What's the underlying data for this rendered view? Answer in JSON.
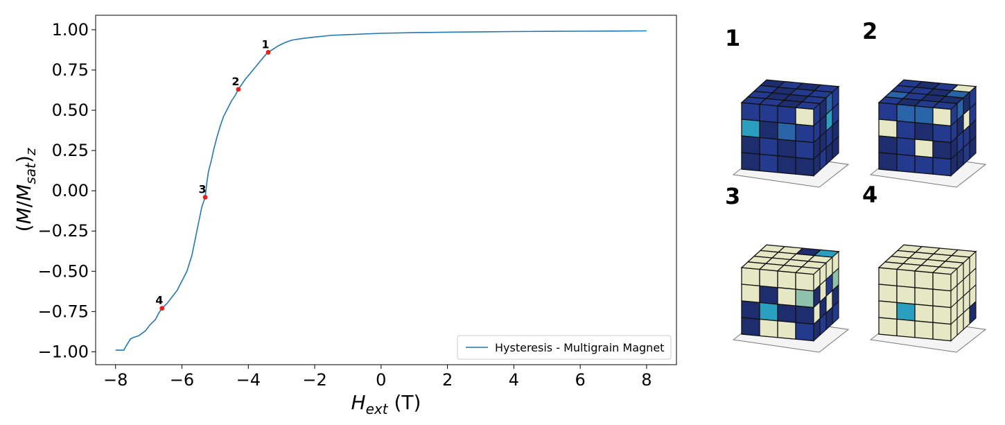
{
  "chart_data": {
    "type": "line",
    "xlabel_main": "H",
    "xlabel_sub": "ext",
    "xlabel_unit": "(T)",
    "ylabel_tokens": [
      "(",
      "M",
      "/",
      "M",
      "sat",
      ")",
      "z"
    ],
    "xlim": [
      -8.6,
      8.9
    ],
    "ylim": [
      -1.08,
      1.09
    ],
    "xticks": [
      -8,
      -6,
      -4,
      -2,
      0,
      2,
      4,
      6,
      8
    ],
    "xtick_labels": [
      "−8",
      "−6",
      "−4",
      "−2",
      "0",
      "2",
      "4",
      "6",
      "8"
    ],
    "yticks": [
      1.0,
      0.75,
      0.5,
      0.25,
      0.0,
      -0.25,
      -0.5,
      -0.75,
      -1.0
    ],
    "ytick_labels": [
      "1.00",
      "0.75",
      "0.50",
      "0.25",
      "0.00",
      "−0.25",
      "−0.50",
      "−0.75",
      "−1.00"
    ],
    "grid": false,
    "legend_position": "bottom-right",
    "series": [
      {
        "name": "Hysteresis - Multigrain Magnet",
        "color": "#1f77b4",
        "x": [
          -8.0,
          -7.75,
          -7.7,
          -7.55,
          -7.45,
          -7.3,
          -7.1,
          -6.95,
          -6.8,
          -6.7,
          -6.6,
          -6.45,
          -6.3,
          -6.15,
          -6.0,
          -5.85,
          -5.7,
          -5.6,
          -5.5,
          -5.4,
          -5.3,
          -5.25,
          -5.2,
          -5.1,
          -5.05,
          -4.95,
          -4.85,
          -4.75,
          -4.6,
          -4.5,
          -4.4,
          -4.3,
          -4.1,
          -3.9,
          -3.7,
          -3.5,
          -3.4,
          -3.25,
          -3.1,
          -2.9,
          -2.7,
          -2.4,
          -2.0,
          -1.5,
          -1.0,
          0.0,
          1.0,
          2.0,
          3.0,
          4.0,
          5.0,
          6.0,
          7.0,
          8.0
        ],
        "y": [
          -0.99,
          -0.99,
          -0.97,
          -0.92,
          -0.91,
          -0.9,
          -0.87,
          -0.83,
          -0.8,
          -0.76,
          -0.73,
          -0.7,
          -0.66,
          -0.62,
          -0.56,
          -0.5,
          -0.4,
          -0.3,
          -0.2,
          -0.1,
          -0.04,
          0.05,
          0.12,
          0.2,
          0.25,
          0.33,
          0.4,
          0.46,
          0.52,
          0.56,
          0.59,
          0.63,
          0.69,
          0.74,
          0.79,
          0.84,
          0.86,
          0.88,
          0.9,
          0.92,
          0.935,
          0.945,
          0.955,
          0.965,
          0.97,
          0.978,
          0.982,
          0.985,
          0.987,
          0.989,
          0.99,
          0.991,
          0.992,
          0.993
        ]
      }
    ],
    "marked_points": [
      {
        "label": "1",
        "x": -3.4,
        "y": 0.86,
        "color": "#e8201a"
      },
      {
        "label": "2",
        "x": -4.3,
        "y": 0.63,
        "color": "#e8201a"
      },
      {
        "label": "3",
        "x": -5.3,
        "y": -0.04,
        "color": "#e8201a"
      },
      {
        "label": "4",
        "x": -6.6,
        "y": -0.73,
        "color": "#e8201a"
      }
    ]
  },
  "snapshots": {
    "colors": {
      "dark": "#1e2d6e",
      "blue": "#243a8f",
      "mid": "#2a64a8",
      "teal": "#2a9fc0",
      "light": "#e6e7c4",
      "sage": "#8fc1ac"
    },
    "panels": [
      {
        "label": "1",
        "top": [
          "dark",
          "blue",
          "dark",
          "blue",
          "blue",
          "dark",
          "blue",
          "blue",
          "blue",
          "dark",
          "dark",
          "blue",
          "blue",
          "blue",
          "dark",
          "blue"
        ],
        "front": [
          "blue",
          "blue",
          "blue",
          "light",
          "teal",
          "dark",
          "mid",
          "blue",
          "dark",
          "blue",
          "dark",
          "blue",
          "dark",
          "blue",
          "dark",
          "dark"
        ],
        "side": [
          "blue",
          "dark",
          "mid",
          "blue",
          "blue",
          "dark",
          "teal",
          "blue",
          "dark",
          "dark",
          "blue",
          "dark",
          "dark",
          "blue",
          "dark",
          "dark"
        ]
      },
      {
        "label": "2",
        "top": [
          "blue",
          "dark",
          "blue",
          "light",
          "blue",
          "blue",
          "dark",
          "mid",
          "mid",
          "blue",
          "dark",
          "dark",
          "blue",
          "dark",
          "blue",
          "blue"
        ],
        "front": [
          "blue",
          "mid",
          "mid",
          "light",
          "light",
          "blue",
          "dark",
          "blue",
          "dark",
          "blue",
          "light",
          "dark",
          "dark",
          "blue",
          "blue",
          "blue"
        ],
        "side": [
          "blue",
          "mid",
          "dark",
          "blue",
          "blue",
          "dark",
          "light",
          "blue",
          "dark",
          "blue",
          "blue",
          "dark",
          "dark",
          "dark",
          "blue",
          "dark"
        ]
      },
      {
        "label": "3",
        "top": [
          "light",
          "light",
          "dark",
          "teal",
          "light",
          "light",
          "light",
          "light",
          "light",
          "light",
          "light",
          "light",
          "light",
          "light",
          "light",
          "light"
        ],
        "front": [
          "light",
          "light",
          "light",
          "light",
          "light",
          "dark",
          "light",
          "sage",
          "dark",
          "teal",
          "dark",
          "dark",
          "dark",
          "light",
          "light",
          "blue"
        ],
        "side": [
          "light",
          "light",
          "light",
          "light",
          "dark",
          "light",
          "blue",
          "sage",
          "light",
          "dark",
          "light",
          "dark",
          "dark",
          "blue",
          "dark",
          "blue"
        ]
      },
      {
        "label": "4",
        "top": [
          "light",
          "light",
          "light",
          "light",
          "light",
          "light",
          "light",
          "light",
          "light",
          "light",
          "light",
          "light",
          "light",
          "light",
          "light",
          "light"
        ],
        "front": [
          "light",
          "light",
          "light",
          "light",
          "light",
          "light",
          "light",
          "light",
          "light",
          "teal",
          "light",
          "light",
          "light",
          "light",
          "light",
          "light"
        ],
        "side": [
          "light",
          "light",
          "light",
          "light",
          "light",
          "light",
          "light",
          "light",
          "light",
          "light",
          "light",
          "light",
          "light",
          "light",
          "light",
          "dark"
        ]
      }
    ]
  }
}
